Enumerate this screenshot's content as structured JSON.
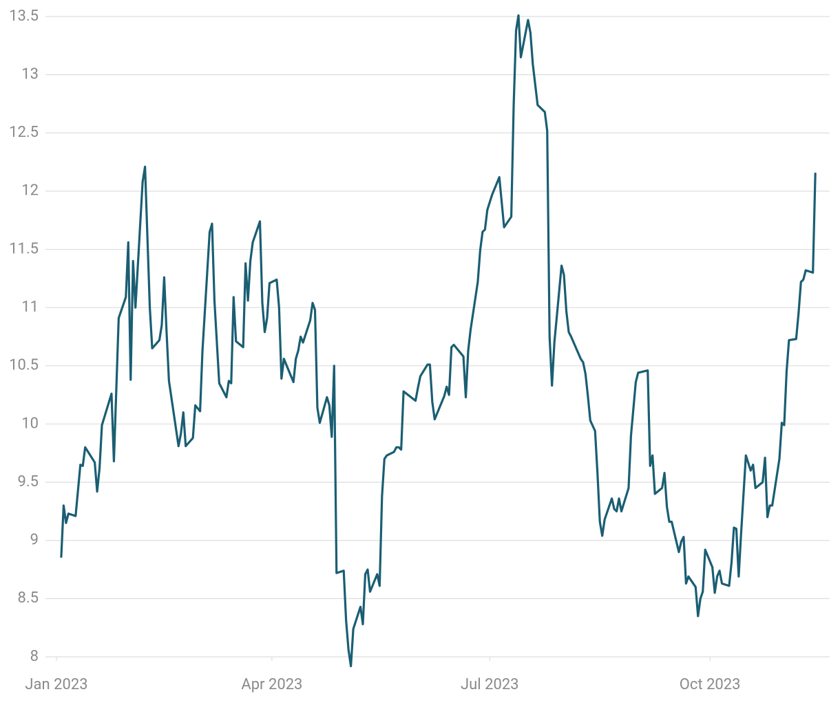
{
  "chart_data": {
    "type": "line",
    "color": "#1a5e73",
    "grid": true,
    "x": [
      2,
      3,
      4,
      5,
      8,
      10,
      11,
      12,
      16,
      17,
      18,
      19,
      23,
      24,
      26,
      29,
      30,
      31,
      32,
      33,
      36,
      37,
      39,
      40,
      43,
      44,
      45,
      46,
      47,
      51,
      52,
      53,
      54,
      57,
      58,
      60,
      61,
      64,
      65,
      66,
      68,
      71,
      72,
      73,
      74,
      75,
      78,
      79,
      80,
      81,
      82,
      85,
      86,
      87,
      88,
      89,
      92,
      93,
      94,
      95,
      99,
      100,
      101,
      102,
      103,
      106,
      107,
      108,
      109,
      110,
      113,
      114,
      115,
      116,
      117,
      120,
      121,
      122,
      123,
      124,
      127,
      128,
      129,
      130,
      131,
      134,
      135,
      136,
      137,
      138,
      141,
      142,
      143,
      144,
      145,
      150,
      151,
      152,
      155,
      156,
      157,
      158,
      162,
      163,
      164,
      165,
      166,
      170,
      171,
      172,
      173,
      176,
      177,
      178,
      179,
      180,
      182,
      185,
      187,
      190,
      191,
      192,
      193,
      194,
      197,
      198,
      199,
      201,
      204,
      205,
      206,
      207,
      208,
      211,
      212,
      213,
      214,
      215,
      219,
      220,
      221,
      222,
      223,
      225,
      226,
      227,
      228,
      229,
      232,
      233,
      234,
      235,
      236,
      239,
      240,
      242,
      243,
      247,
      248,
      249,
      250,
      253,
      254,
      255,
      256,
      257,
      260,
      261,
      262,
      263,
      264,
      267,
      268,
      269,
      270,
      271,
      274,
      275,
      276,
      277,
      278,
      281,
      282,
      283,
      284,
      285,
      286,
      288,
      290,
      291,
      292,
      295,
      296,
      297,
      298,
      299,
      302,
      303,
      304,
      305,
      306,
      309,
      310,
      311,
      312,
      313,
      316,
      317
    ],
    "values": [
      8.86,
      9.3,
      9.15,
      9.23,
      9.21,
      9.65,
      9.64,
      9.8,
      9.67,
      9.42,
      9.62,
      9.99,
      10.26,
      9.68,
      10.91,
      11.09,
      11.56,
      10.38,
      11.4,
      11.0,
      12.08,
      12.21,
      11.0,
      10.65,
      10.72,
      10.85,
      11.26,
      10.79,
      10.37,
      9.81,
      9.92,
      10.1,
      9.81,
      9.88,
      10.16,
      10.11,
      10.63,
      11.65,
      11.72,
      11.06,
      10.35,
      10.23,
      10.37,
      10.35,
      11.09,
      10.71,
      10.66,
      11.38,
      11.06,
      11.4,
      11.56,
      11.74,
      11.04,
      10.79,
      10.91,
      11.21,
      11.24,
      11.0,
      10.39,
      10.56,
      10.36,
      10.56,
      10.63,
      10.75,
      10.7,
      10.89,
      11.04,
      10.98,
      10.14,
      10.01,
      10.23,
      10.16,
      9.89,
      10.5,
      8.72,
      8.74,
      8.31,
      8.06,
      7.92,
      8.24,
      8.43,
      8.28,
      8.71,
      8.75,
      8.56,
      8.71,
      8.61,
      9.38,
      9.7,
      9.73,
      9.76,
      9.8,
      9.8,
      9.78,
      10.28,
      10.2,
      10.31,
      10.41,
      10.51,
      10.51,
      10.19,
      10.04,
      10.24,
      10.32,
      10.25,
      10.66,
      10.68,
      10.58,
      10.23,
      10.63,
      10.81,
      11.22,
      11.49,
      11.65,
      11.67,
      11.84,
      11.97,
      12.12,
      11.69,
      11.78,
      12.74,
      13.38,
      13.51,
      13.15,
      13.47,
      13.36,
      13.09,
      12.74,
      12.68,
      12.52,
      10.75,
      10.33,
      10.7,
      11.36,
      11.28,
      10.97,
      10.79,
      10.75,
      10.56,
      10.53,
      10.43,
      10.24,
      10.03,
      9.94,
      9.58,
      9.16,
      9.04,
      9.18,
      9.36,
      9.27,
      9.25,
      9.36,
      9.25,
      9.45,
      9.9,
      10.36,
      10.44,
      10.46,
      9.64,
      9.73,
      9.4,
      9.45,
      9.58,
      9.29,
      9.16,
      9.16,
      8.9,
      8.99,
      9.03,
      8.63,
      8.69,
      8.6,
      8.35,
      8.5,
      8.56,
      8.92,
      8.77,
      8.55,
      8.69,
      8.74,
      8.63,
      8.61,
      8.81,
      9.11,
      9.1,
      8.69,
      9.06,
      9.73,
      9.6,
      9.65,
      9.45,
      9.5,
      9.71,
      9.2,
      9.3,
      9.3,
      9.7,
      10.01,
      9.99,
      10.45,
      10.72,
      10.73,
      10.95,
      11.22,
      11.24,
      11.32,
      11.3,
      12.15
    ],
    "xlim": [
      -11.5,
      323
    ],
    "xticks": [
      {
        "value": 0,
        "label": "Jan 2023"
      },
      {
        "value": 90,
        "label": "Apr 2023"
      },
      {
        "value": 181,
        "label": "Jul 2023"
      },
      {
        "value": 273,
        "label": "Oct 2023"
      }
    ],
    "ylim": [
      8,
      13.5
    ],
    "yticks": [
      8,
      8.5,
      9,
      9.5,
      10,
      10.5,
      11,
      11.5,
      12,
      12.5,
      13,
      13.5
    ]
  }
}
